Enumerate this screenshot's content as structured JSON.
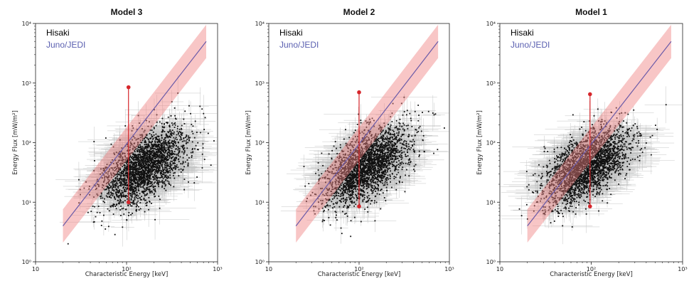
{
  "chart_data": [
    {
      "type": "scatter",
      "title": "Model 3",
      "xlabel": "Characteristic Energy [keV]",
      "ylabel": "Energy Flux [mW/m²]",
      "xscale": "log",
      "yscale": "log",
      "xlim": [
        10,
        1000
      ],
      "ylim": [
        1,
        10000
      ],
      "xticks": [
        "10",
        "10²",
        "10³"
      ],
      "yticks": [
        "10⁰",
        "10¹",
        "10²",
        "10³",
        "10⁴"
      ],
      "legend": [
        {
          "label": "Hisaki",
          "color": "#000000"
        },
        {
          "label": "Juno/JEDI",
          "color": "#5a5fb0"
        }
      ],
      "legend_position": "top-left",
      "fit_line": {
        "x": [
          20,
          750
        ],
        "y": [
          4,
          5000
        ],
        "color": "#6a5aa8",
        "band_color": "#f08080"
      },
      "cloud_center": {
        "x": 160,
        "y": 40
      },
      "hisaki_range": {
        "x": 105,
        "y": [
          10,
          850
        ],
        "color": "#d6262b"
      }
    },
    {
      "type": "scatter",
      "title": "Model 2",
      "xlabel": "Characteristic Energy [keV]",
      "ylabel": "Energy Flux [mW/m²]",
      "xscale": "log",
      "yscale": "log",
      "xlim": [
        10,
        1000
      ],
      "ylim": [
        1,
        10000
      ],
      "xticks": [
        "10",
        "10²",
        "10³"
      ],
      "yticks": [
        "10⁰",
        "10¹",
        "10²",
        "10³",
        "10⁴"
      ],
      "legend": [
        {
          "label": "Hisaki",
          "color": "#000000"
        },
        {
          "label": "Juno/JEDI",
          "color": "#5a5fb0"
        }
      ],
      "legend_position": "top-left",
      "fit_line": {
        "x": [
          20,
          750
        ],
        "y": [
          4,
          5000
        ],
        "color": "#6a5aa8",
        "band_color": "#f08080"
      },
      "cloud_center": {
        "x": 120,
        "y": 40
      },
      "hisaki_range": {
        "x": 100,
        "y": [
          8.5,
          700
        ],
        "color": "#d6262b"
      }
    },
    {
      "type": "scatter",
      "title": "Model 1",
      "xlabel": "Characteristic Energy [keV]",
      "ylabel": "Energy Flux [mW/m²]",
      "xscale": "log",
      "yscale": "log",
      "xlim": [
        10,
        1000
      ],
      "ylim": [
        1,
        10000
      ],
      "xticks": [
        "10",
        "10²",
        "10³"
      ],
      "yticks": [
        "10⁰",
        "10¹",
        "10²",
        "10³",
        "10⁴"
      ],
      "legend": [
        {
          "label": "Hisaki",
          "color": "#000000"
        },
        {
          "label": "Juno/JEDI",
          "color": "#5a5fb0"
        }
      ],
      "legend_position": "top-left",
      "fit_line": {
        "x": [
          20,
          750
        ],
        "y": [
          4,
          5000
        ],
        "color": "#6a5aa8",
        "band_color": "#f08080"
      },
      "cloud_center": {
        "x": 90,
        "y": 40
      },
      "hisaki_range": {
        "x": 97,
        "y": [
          8.5,
          650
        ],
        "color": "#d6262b"
      }
    }
  ]
}
